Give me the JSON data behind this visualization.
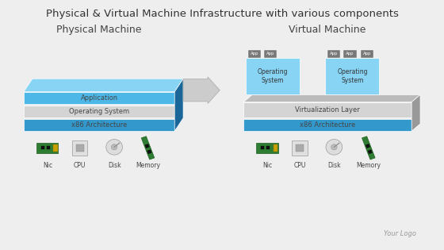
{
  "title": "Physical & Virtual Machine Infrastructure with various components",
  "title_fontsize": 9.5,
  "bg_color": "#eeeeee",
  "physical_label": "Physical Machine",
  "virtual_label": "Virtual Machine",
  "phys_layer_colors": [
    "#3399cc",
    "#d4d4d4",
    "#4db8e8"
  ],
  "phys_layer_labels": [
    "x86 Architecture",
    "Operating System",
    "Application"
  ],
  "virt_layer_colors": [
    "#3399cc",
    "#d4d4d4"
  ],
  "virt_layer_labels": [
    "x86 Architecture",
    "Virtualization Layer"
  ],
  "os_box_color": "#87d4f5",
  "os_box_label": "Operating\nSystem",
  "app_box_color": "#777777",
  "app_box_label": "App",
  "hardware_labels": [
    "Nic",
    "CPU",
    "Disk",
    "Memory"
  ],
  "arrow_color": "#cccccc",
  "logo_text": "Your Logo",
  "phys_top_color": "#87d4f5",
  "phys_side_color": "#1a6699",
  "virt_top_color": "#bbbbbb",
  "virt_side_color": "#999999"
}
